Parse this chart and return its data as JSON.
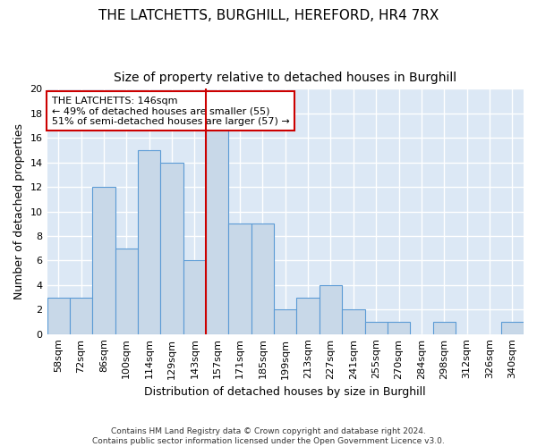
{
  "title1": "THE LATCHETTS, BURGHILL, HEREFORD, HR4 7RX",
  "title2": "Size of property relative to detached houses in Burghill",
  "xlabel": "Distribution of detached houses by size in Burghill",
  "ylabel": "Number of detached properties",
  "footer": "Contains HM Land Registry data © Crown copyright and database right 2024.\nContains public sector information licensed under the Open Government Licence v3.0.",
  "categories": [
    "58sqm",
    "72sqm",
    "86sqm",
    "100sqm",
    "114sqm",
    "129sqm",
    "143sqm",
    "157sqm",
    "171sqm",
    "185sqm",
    "199sqm",
    "213sqm",
    "227sqm",
    "241sqm",
    "255sqm",
    "270sqm",
    "284sqm",
    "298sqm",
    "312sqm",
    "326sqm",
    "340sqm"
  ],
  "values": [
    3,
    3,
    12,
    7,
    15,
    14,
    6,
    17,
    9,
    9,
    2,
    3,
    4,
    2,
    1,
    1,
    0,
    1,
    0,
    0,
    1
  ],
  "bar_color": "#c8d8e8",
  "bar_edge_color": "#5b9bd5",
  "vline_x_idx": 6.5,
  "vline_color": "#cc0000",
  "annotation_line1": "THE LATCHETTS: 146sqm",
  "annotation_line2": "← 49% of detached houses are smaller (55)",
  "annotation_line3": "51% of semi-detached houses are larger (57) →",
  "annotation_box_color": "white",
  "annotation_box_edge": "#cc0000",
  "ylim": [
    0,
    20
  ],
  "yticks": [
    0,
    2,
    4,
    6,
    8,
    10,
    12,
    14,
    16,
    18,
    20
  ],
  "background_color": "#dce8f5",
  "grid_color": "white",
  "title1_fontsize": 11,
  "title2_fontsize": 10,
  "xlabel_fontsize": 9,
  "ylabel_fontsize": 9,
  "tick_fontsize": 8,
  "annotation_fontsize": 8
}
